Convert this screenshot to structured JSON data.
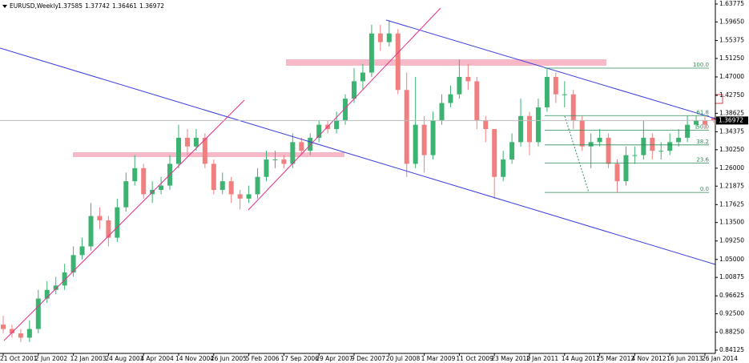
{
  "chart_data": {
    "type": "candlestick",
    "symbol": "EURUSD,Weekly",
    "ohlc": [
      1.37585,
      1.37742,
      1.36461,
      1.36972
    ],
    "up_color": "#3cb371",
    "down_color": "#f08080",
    "categories": [
      "21 Oct 2001",
      null,
      null,
      null,
      "2 Jun 2002",
      null,
      null,
      null,
      "12 Jan 2003",
      null,
      null,
      null,
      "24 Aug 2003",
      null,
      null,
      null,
      "4 Apr 2004",
      null,
      null,
      null,
      "14 Nov 2004",
      null,
      null,
      null,
      "26 Jun 2005",
      null,
      null,
      null,
      "5 Feb 2006",
      null,
      null,
      null,
      "17 Sep 2006",
      null,
      null,
      null,
      "29 Apr 2007",
      null,
      null,
      null,
      "9 Dec 2007",
      null,
      null,
      null,
      "20 Jul 2008",
      null,
      null,
      null,
      "1 Mar 2009",
      null,
      null,
      null,
      "11 Oct 2009",
      null,
      null,
      null,
      "23 May 2010",
      null,
      null,
      null,
      "2 Jan 2011",
      null,
      null,
      null,
      "14 Aug 2011",
      null,
      null,
      null,
      "25 Mar 2012",
      null,
      null,
      null,
      "4 Nov 2012",
      null,
      null,
      null,
      "16 Jun 2013",
      null,
      null,
      null,
      "26 Jan 2014",
      null
    ],
    "open": [
      0.9,
      0.89,
      0.88,
      0.87,
      0.89,
      0.96,
      0.98,
      0.99,
      1.02,
      1.06,
      1.08,
      1.15,
      1.14,
      1.1,
      1.17,
      1.23,
      1.26,
      1.2,
      1.21,
      1.22,
      1.27,
      1.33,
      1.31,
      1.33,
      1.27,
      1.21,
      1.23,
      1.2,
      1.19,
      1.2,
      1.24,
      1.28,
      1.28,
      1.27,
      1.32,
      1.3,
      1.33,
      1.36,
      1.35,
      1.37,
      1.42,
      1.46,
      1.48,
      1.57,
      1.55,
      1.57,
      1.44,
      1.27,
      1.36,
      1.29,
      1.37,
      1.41,
      1.43,
      1.47,
      1.46,
      1.37,
      1.35,
      1.24,
      1.28,
      1.32,
      1.38,
      1.32,
      1.4,
      1.47,
      1.43,
      1.43,
      1.37,
      1.31,
      1.32,
      1.33,
      1.27,
      1.23,
      1.29,
      1.29,
      1.33,
      1.3,
      1.3,
      1.32,
      1.33,
      1.36,
      1.37,
      1.37585
    ],
    "high": [
      0.92,
      0.9,
      0.89,
      0.91,
      0.98,
      1.0,
      1.01,
      1.04,
      1.08,
      1.1,
      1.18,
      1.17,
      1.15,
      1.19,
      1.25,
      1.29,
      1.27,
      1.23,
      1.24,
      1.29,
      1.36,
      1.35,
      1.35,
      1.34,
      1.28,
      1.25,
      1.24,
      1.21,
      1.22,
      1.26,
      1.3,
      1.3,
      1.29,
      1.34,
      1.33,
      1.34,
      1.37,
      1.37,
      1.39,
      1.43,
      1.49,
      1.5,
      1.59,
      1.59,
      1.6,
      1.58,
      1.48,
      1.47,
      1.38,
      1.39,
      1.43,
      1.45,
      1.51,
      1.5,
      1.47,
      1.38,
      1.35,
      1.3,
      1.34,
      1.42,
      1.39,
      1.42,
      1.49,
      1.48,
      1.46,
      1.44,
      1.38,
      1.34,
      1.35,
      1.34,
      1.28,
      1.31,
      1.31,
      1.37,
      1.34,
      1.32,
      1.34,
      1.35,
      1.38,
      1.38,
      1.38,
      1.37742
    ],
    "low": [
      0.88,
      0.87,
      0.86,
      0.86,
      0.88,
      0.95,
      0.97,
      0.98,
      1.01,
      1.05,
      1.07,
      1.12,
      1.08,
      1.09,
      1.16,
      1.22,
      1.19,
      1.18,
      1.2,
      1.21,
      1.26,
      1.29,
      1.3,
      1.26,
      1.2,
      1.2,
      1.18,
      1.165,
      1.18,
      1.19,
      1.23,
      1.26,
      1.26,
      1.26,
      1.29,
      1.29,
      1.32,
      1.34,
      1.34,
      1.36,
      1.41,
      1.44,
      1.47,
      1.53,
      1.54,
      1.43,
      1.24,
      1.26,
      1.25,
      1.28,
      1.36,
      1.4,
      1.42,
      1.44,
      1.35,
      1.32,
      1.19,
      1.23,
      1.27,
      1.31,
      1.29,
      1.31,
      1.39,
      1.41,
      1.4,
      1.35,
      1.3,
      1.26,
      1.31,
      1.26,
      1.205,
      1.22,
      1.27,
      1.28,
      1.28,
      1.28,
      1.29,
      1.31,
      1.32,
      1.35,
      1.35,
      1.36461
    ],
    "close": [
      0.89,
      0.88,
      0.87,
      0.89,
      0.96,
      0.98,
      0.99,
      1.02,
      1.06,
      1.08,
      1.15,
      1.14,
      1.1,
      1.17,
      1.23,
      1.26,
      1.2,
      1.21,
      1.22,
      1.27,
      1.33,
      1.31,
      1.33,
      1.27,
      1.21,
      1.23,
      1.2,
      1.19,
      1.2,
      1.24,
      1.28,
      1.28,
      1.27,
      1.32,
      1.3,
      1.33,
      1.36,
      1.35,
      1.37,
      1.42,
      1.46,
      1.48,
      1.57,
      1.55,
      1.57,
      1.44,
      1.27,
      1.36,
      1.29,
      1.37,
      1.41,
      1.43,
      1.47,
      1.46,
      1.37,
      1.35,
      1.24,
      1.28,
      1.32,
      1.38,
      1.32,
      1.4,
      1.47,
      1.43,
      1.43,
      1.37,
      1.31,
      1.32,
      1.33,
      1.27,
      1.23,
      1.29,
      1.29,
      1.33,
      1.3,
      1.3,
      1.32,
      1.33,
      1.36,
      1.37,
      1.36,
      1.36972
    ],
    "ylim": [
      0.84125,
      1.63775
    ],
    "yticks": [
      {
        "value": 1.63775,
        "label": "1.63775"
      },
      {
        "value": 1.5965,
        "label": "1.59650"
      },
      {
        "value": 1.55375,
        "label": "1.55375"
      },
      {
        "value": 1.5125,
        "label": "1.51250"
      },
      {
        "value": 1.47,
        "label": "1.47000"
      },
      {
        "value": 1.4275,
        "label": "1.42750"
      },
      {
        "value": 1.38625,
        "label": "1.38625"
      },
      {
        "value": 1.34375,
        "label": "1.34375"
      },
      {
        "value": 1.3025,
        "label": "1.30250"
      },
      {
        "value": 1.26,
        "label": "1.26000"
      },
      {
        "value": 1.21875,
        "label": "1.21875"
      },
      {
        "value": 1.17625,
        "label": "1.17625"
      },
      {
        "value": 1.135,
        "label": "1.13500"
      },
      {
        "value": 1.0925,
        "label": "1.09250"
      },
      {
        "value": 1.05,
        "label": "1.05000"
      },
      {
        "value": 1.00875,
        "label": "1.00875"
      },
      {
        "value": 0.96625,
        "label": "0.96625"
      },
      {
        "value": 0.925,
        "label": "0.92500"
      },
      {
        "value": 0.8825,
        "label": "0.88250"
      },
      {
        "value": 0.84125,
        "label": "0.84125"
      }
    ],
    "fib_levels": [
      {
        "label": "100.0",
        "price": 1.4903
      },
      {
        "label": "61.8",
        "price": 1.381
      },
      {
        "label": "50.0",
        "price": 1.3473
      },
      {
        "label": "38.2",
        "price": 1.3136
      },
      {
        "label": "23.6",
        "price": 1.2718
      },
      {
        "label": "0.0",
        "price": 1.2043
      }
    ]
  }
}
